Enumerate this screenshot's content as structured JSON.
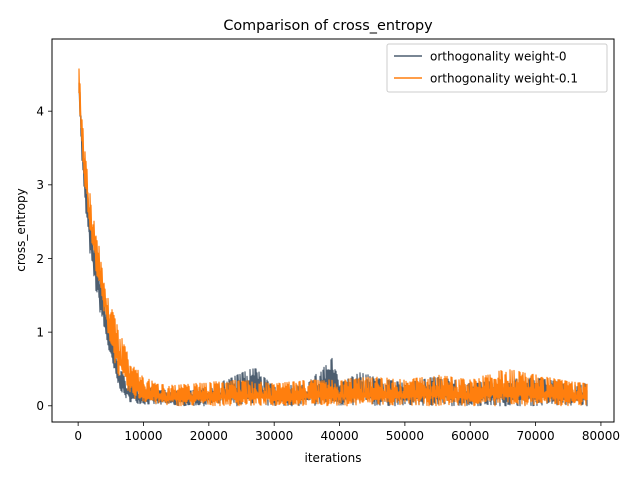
{
  "chart_data": {
    "type": "line",
    "title": "Comparison of cross_entropy",
    "xlabel": "iterations",
    "ylabel": "cross_entropy",
    "xlim": [
      -4000,
      82000
    ],
    "ylim": [
      -0.22,
      4.98
    ],
    "xticks": [
      0,
      10000,
      20000,
      30000,
      40000,
      50000,
      60000,
      70000,
      80000
    ],
    "xtick_labels": [
      "0",
      "10000",
      "20000",
      "30000",
      "40000",
      "50000",
      "60000",
      "70000",
      "80000"
    ],
    "yticks": [
      0,
      1,
      2,
      3,
      4
    ],
    "ytick_labels": [
      "0",
      "1",
      "2",
      "3",
      "4"
    ],
    "grid": false,
    "legend_position": "top-right",
    "series": [
      {
        "name": "orthogonality weight-0",
        "color": "#4d5e70",
        "x": [
          0,
          500,
          1000,
          1500,
          2000,
          3000,
          4000,
          5000,
          6000,
          7000,
          8000,
          10000,
          12000,
          15000,
          20000,
          27000,
          30000,
          35000,
          38900,
          40000,
          43000,
          50000,
          55000,
          60000,
          65000,
          70000,
          75000,
          78000
        ],
        "low": [
          4.55,
          3.4,
          2.7,
          2.3,
          1.9,
          1.4,
          1.0,
          0.6,
          0.3,
          0.12,
          0.05,
          0.02,
          0.01,
          0.0,
          0.0,
          0.0,
          0.0,
          0.0,
          0.0,
          0.0,
          0.0,
          0.0,
          0.0,
          0.0,
          0.0,
          0.0,
          0.0,
          0.0
        ],
        "high": [
          4.75,
          3.9,
          3.3,
          2.9,
          2.5,
          2.0,
          1.5,
          1.0,
          0.6,
          0.4,
          0.3,
          0.25,
          0.22,
          0.2,
          0.25,
          0.52,
          0.25,
          0.3,
          0.65,
          0.3,
          0.45,
          0.3,
          0.4,
          0.3,
          0.35,
          0.38,
          0.3,
          0.3
        ]
      },
      {
        "name": "orthogonality weight-0.1",
        "color": "#ff7f0e",
        "x": [
          0,
          500,
          1000,
          1500,
          2000,
          3000,
          4000,
          5000,
          6000,
          7000,
          8000,
          10000,
          12000,
          15000,
          20000,
          25000,
          30000,
          35000,
          40000,
          45000,
          50000,
          55000,
          60000,
          65500,
          70000,
          75000,
          78000
        ],
        "low": [
          4.4,
          3.6,
          3.0,
          2.6,
          2.2,
          1.7,
          1.2,
          0.8,
          0.45,
          0.25,
          0.12,
          0.05,
          0.02,
          0.0,
          0.0,
          0.0,
          0.0,
          0.0,
          0.0,
          0.0,
          0.0,
          0.0,
          0.0,
          0.0,
          0.0,
          0.0,
          0.0
        ],
        "high": [
          4.75,
          4.1,
          3.5,
          3.1,
          2.75,
          2.25,
          1.8,
          1.35,
          1.1,
          0.85,
          0.6,
          0.4,
          0.3,
          0.28,
          0.32,
          0.35,
          0.3,
          0.35,
          0.35,
          0.4,
          0.35,
          0.42,
          0.35,
          0.5,
          0.42,
          0.33,
          0.3
        ]
      }
    ]
  }
}
